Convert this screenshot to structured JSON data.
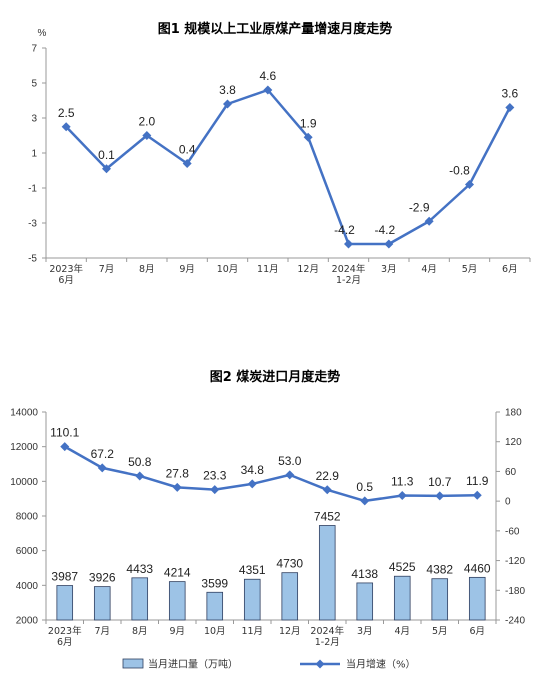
{
  "chart_data": [
    {
      "type": "line",
      "title": "图1  规模以上工业原煤产量增速月度走势",
      "ylabel": "%",
      "ylim": [
        -5,
        7
      ],
      "yticks": [
        7,
        5,
        3,
        1,
        -1,
        -3,
        -5
      ],
      "categories": [
        [
          "2023年",
          "6月"
        ],
        [
          "7月"
        ],
        [
          "8月"
        ],
        [
          "9月"
        ],
        [
          "10月"
        ],
        [
          "11月"
        ],
        [
          "12月"
        ],
        [
          "2024年",
          "1-2月"
        ],
        [
          "3月"
        ],
        [
          "4月"
        ],
        [
          "5月"
        ],
        [
          "6月"
        ]
      ],
      "series": [
        {
          "values": [
            2.5,
            0.1,
            2.0,
            0.4,
            3.8,
            4.6,
            1.9,
            -4.2,
            -4.2,
            -2.9,
            -0.8,
            3.6
          ],
          "labels": [
            "2.5",
            "0.1",
            "2.0",
            "0.4",
            "3.8",
            "4.6",
            "1.9",
            "-4.2",
            "-4.2",
            "-2.9",
            "-0.8",
            "3.6"
          ],
          "color": "#4472c4"
        }
      ],
      "grid": false
    },
    {
      "type": "bar+line",
      "title": "图2  煤炭进口月度走势",
      "categories": [
        [
          "2023年",
          "6月"
        ],
        [
          "7月"
        ],
        [
          "8月"
        ],
        [
          "9月"
        ],
        [
          "10月"
        ],
        [
          "11月"
        ],
        [
          "12月"
        ],
        [
          "2024年",
          "1-2月"
        ],
        [
          "3月"
        ],
        [
          "4月"
        ],
        [
          "5月"
        ],
        [
          "6月"
        ]
      ],
      "left_axis": {
        "ylim": [
          2000,
          14000
        ],
        "yticks": [
          14000,
          12000,
          10000,
          8000,
          6000,
          4000,
          2000
        ]
      },
      "right_axis": {
        "ylim": [
          -240,
          180
        ],
        "yticks": [
          180,
          120,
          60,
          0,
          -60,
          -120,
          -180,
          -240
        ]
      },
      "series": [
        {
          "name": "当月进口量（万吨）",
          "kind": "bar",
          "axis": "left",
          "values": [
            3987,
            3926,
            4433,
            4214,
            3599,
            4351,
            4730,
            7452,
            4138,
            4525,
            4382,
            4460
          ],
          "labels": [
            "3987",
            "3926",
            "4433",
            "4214",
            "3599",
            "4351",
            "4730",
            "7452",
            "4138",
            "4525",
            "4382",
            "4460"
          ],
          "color": "#9dc3e6"
        },
        {
          "name": "当月增速（%）",
          "kind": "line",
          "axis": "right",
          "values": [
            110.1,
            67.2,
            50.8,
            27.8,
            23.3,
            34.8,
            53.0,
            22.9,
            0.5,
            11.3,
            10.7,
            11.9
          ],
          "labels": [
            "110.1",
            "67.2",
            "50.8",
            "27.8",
            "23.3",
            "34.8",
            "53.0",
            "22.9",
            "0.5",
            "11.3",
            "10.7",
            "11.9"
          ],
          "color": "#4472c4"
        }
      ],
      "legend_position": "bottom",
      "grid": false
    }
  ]
}
